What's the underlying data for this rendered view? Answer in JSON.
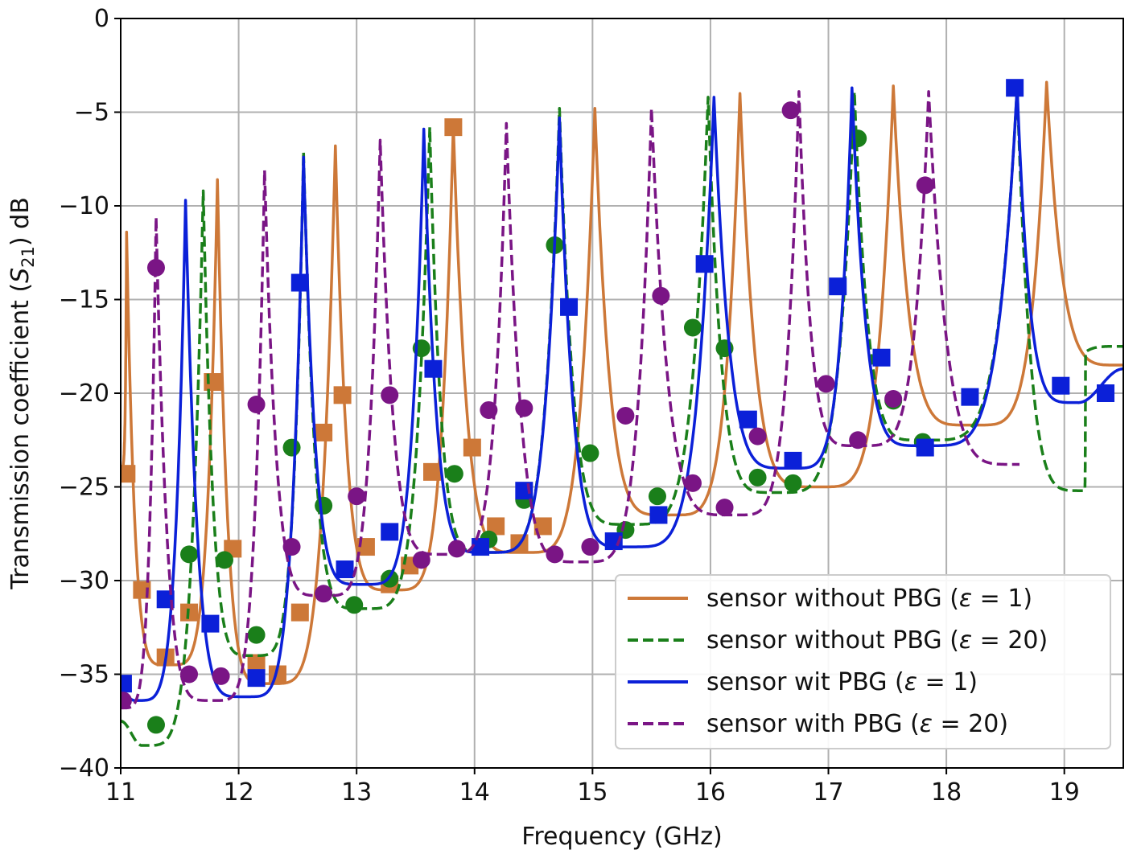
{
  "chart_data": {
    "type": "line",
    "title": "",
    "xlabel": "Frequency (GHz)",
    "ylabel": "Transmission coefficient (S21) dB",
    "ylabel_parts": {
      "pre": "Transmission coefficient (",
      "sym": "S",
      "sub": "21",
      "post": ") dB"
    },
    "xlim": [
      11,
      19.5
    ],
    "ylim": [
      -40,
      0
    ],
    "xticks": [
      11,
      12,
      13,
      14,
      15,
      16,
      17,
      18,
      19
    ],
    "yticks": [
      0,
      -5,
      -10,
      -15,
      -20,
      -25,
      -30,
      -35,
      -40
    ],
    "grid": true,
    "legend_position": "lower-right",
    "series": [
      {
        "name": "sensor without PBG (ε = 1)",
        "legend_parts": {
          "pre": "sensor without PBG (",
          "sym": "ε",
          "post": " = 1)"
        },
        "color": "#cd7838",
        "dash": "solid",
        "marker": "square",
        "peaks": [
          [
            11.05,
            -11.4
          ],
          [
            11.82,
            -8.6
          ],
          [
            12.82,
            -6.8
          ],
          [
            13.82,
            -5.7
          ],
          [
            15.02,
            -4.8
          ],
          [
            16.25,
            -4.0
          ],
          [
            17.55,
            -3.6
          ],
          [
            18.85,
            -3.4
          ]
        ],
        "valleys": [
          [
            11.0,
            -24.0
          ],
          [
            11.4,
            -34.5
          ],
          [
            12.25,
            -35.5
          ],
          [
            13.3,
            -30.5
          ],
          [
            14.4,
            -28.5
          ],
          [
            15.65,
            -26.5
          ],
          [
            16.9,
            -25.0
          ],
          [
            18.22,
            -21.7
          ],
          [
            19.5,
            -18.5
          ]
        ],
        "markers": [
          [
            11.05,
            -24.3
          ],
          [
            11.18,
            -30.5
          ],
          [
            11.38,
            -34.1
          ],
          [
            11.58,
            -31.7
          ],
          [
            11.78,
            -19.4
          ],
          [
            11.95,
            -28.3
          ],
          [
            12.15,
            -34.4
          ],
          [
            12.33,
            -35.0
          ],
          [
            12.52,
            -31.7
          ],
          [
            12.72,
            -22.1
          ],
          [
            12.88,
            -20.1
          ],
          [
            13.08,
            -28.2
          ],
          [
            13.28,
            -30.2
          ],
          [
            13.45,
            -29.2
          ],
          [
            13.64,
            -24.2
          ],
          [
            13.82,
            -5.8
          ],
          [
            13.98,
            -22.9
          ],
          [
            14.18,
            -27.1
          ],
          [
            14.38,
            -28.0
          ],
          [
            14.58,
            -27.1
          ]
        ]
      },
      {
        "name": "sensor without PBG (ε = 20)",
        "legend_parts": {
          "pre": "sensor without PBG (",
          "sym": "ε",
          "post": " = 20)"
        },
        "color": "#1a7f1a",
        "dash": "dashed",
        "marker": "circle",
        "peaks": [
          [
            11.7,
            -9.2
          ],
          [
            12.55,
            -7.1
          ],
          [
            13.62,
            -5.8
          ],
          [
            14.72,
            -4.8
          ],
          [
            15.98,
            -4.2
          ],
          [
            17.22,
            -3.9
          ],
          [
            18.6,
            -3.7
          ],
          [
            19.18,
            -17.8
          ]
        ],
        "valleys": [
          [
            11.0,
            -37.5
          ],
          [
            11.18,
            -38.8
          ],
          [
            12.12,
            -34.0
          ],
          [
            13.05,
            -31.5
          ],
          [
            14.1,
            -28.5
          ],
          [
            15.3,
            -27.0
          ],
          [
            16.55,
            -25.3
          ],
          [
            17.8,
            -22.5
          ],
          [
            19.17,
            -25.2
          ],
          [
            19.5,
            -17.5
          ]
        ],
        "markers": [
          [
            11.3,
            -37.7
          ],
          [
            11.58,
            -28.6
          ],
          [
            11.88,
            -28.9
          ],
          [
            12.15,
            -32.9
          ],
          [
            12.45,
            -22.9
          ],
          [
            12.72,
            -26.0
          ],
          [
            12.98,
            -31.3
          ],
          [
            13.28,
            -29.9
          ],
          [
            13.55,
            -17.6
          ],
          [
            13.83,
            -24.3
          ],
          [
            14.12,
            -27.8
          ],
          [
            14.42,
            -25.7
          ],
          [
            14.68,
            -12.1
          ],
          [
            14.98,
            -23.2
          ],
          [
            15.28,
            -27.3
          ],
          [
            15.55,
            -25.5
          ],
          [
            15.85,
            -16.5
          ],
          [
            16.12,
            -17.6
          ],
          [
            16.4,
            -24.5
          ],
          [
            16.7,
            -24.8
          ],
          [
            17.25,
            -6.4
          ],
          [
            17.55,
            -20.4
          ],
          [
            17.8,
            -22.6
          ]
        ]
      },
      {
        "name": "sensor wit PBG (ε = 1)",
        "legend_parts": {
          "pre": "sensor wit PBG (",
          "sym": "ε",
          "post": " = 1)"
        },
        "color": "#0b20d8",
        "dash": "solid",
        "marker": "square",
        "peaks": [
          [
            11.55,
            -9.7
          ],
          [
            12.55,
            -7.4
          ],
          [
            13.57,
            -5.9
          ],
          [
            14.72,
            -5.3
          ],
          [
            16.03,
            -4.2
          ],
          [
            17.2,
            -3.7
          ],
          [
            18.6,
            -3.6
          ]
        ],
        "valleys": [
          [
            11.0,
            -36.0
          ],
          [
            11.12,
            -36.4
          ],
          [
            12.05,
            -36.2
          ],
          [
            13.05,
            -30.2
          ],
          [
            14.1,
            -28.5
          ],
          [
            15.3,
            -28.2
          ],
          [
            16.68,
            -24.0
          ],
          [
            17.8,
            -22.8
          ],
          [
            19.12,
            -20.5
          ],
          [
            19.5,
            -18.7
          ]
        ],
        "markers": [
          [
            11.02,
            -35.5
          ],
          [
            11.38,
            -31.0
          ],
          [
            11.76,
            -32.3
          ],
          [
            12.15,
            -35.2
          ],
          [
            12.52,
            -14.1
          ],
          [
            12.9,
            -29.4
          ],
          [
            13.28,
            -27.4
          ],
          [
            13.65,
            -18.7
          ],
          [
            14.05,
            -28.2
          ],
          [
            14.42,
            -25.2
          ],
          [
            14.8,
            -15.4
          ],
          [
            15.18,
            -27.9
          ],
          [
            15.56,
            -26.5
          ],
          [
            15.95,
            -13.1
          ],
          [
            16.32,
            -21.4
          ],
          [
            16.7,
            -23.6
          ],
          [
            17.08,
            -14.3
          ],
          [
            17.45,
            -18.1
          ],
          [
            17.82,
            -22.9
          ],
          [
            18.2,
            -20.2
          ],
          [
            18.58,
            -3.7
          ],
          [
            18.97,
            -19.6
          ],
          [
            19.35,
            -20.0
          ]
        ]
      },
      {
        "name": "sensor with PBG (ε = 20)",
        "legend_parts": {
          "pre": "sensor with PBG (",
          "sym": "ε",
          "post": " = 20)"
        },
        "color": "#7a1585",
        "dash": "dashed",
        "marker": "circle",
        "peaks": [
          [
            11.3,
            -10.6
          ],
          [
            12.22,
            -8.1
          ],
          [
            13.2,
            -6.5
          ],
          [
            14.27,
            -5.6
          ],
          [
            15.5,
            -4.8
          ],
          [
            16.75,
            -3.9
          ],
          [
            17.85,
            -3.9
          ]
        ],
        "valleys": [
          [
            11.0,
            -36.8
          ],
          [
            11.78,
            -36.4
          ],
          [
            12.72,
            -30.8
          ],
          [
            13.75,
            -28.6
          ],
          [
            14.9,
            -29.0
          ],
          [
            16.2,
            -26.5
          ],
          [
            17.25,
            -22.8
          ],
          [
            18.62,
            -23.8
          ]
        ],
        "markers": [
          [
            11.02,
            -36.4
          ],
          [
            11.3,
            -13.3
          ],
          [
            11.58,
            -35.0
          ],
          [
            11.85,
            -35.1
          ],
          [
            12.15,
            -20.6
          ],
          [
            12.45,
            -28.2
          ],
          [
            12.72,
            -30.7
          ],
          [
            13.0,
            -25.5
          ],
          [
            13.28,
            -20.1
          ],
          [
            13.55,
            -28.9
          ],
          [
            13.85,
            -28.3
          ],
          [
            14.12,
            -20.9
          ],
          [
            14.42,
            -20.8
          ],
          [
            14.68,
            -28.6
          ],
          [
            14.98,
            -28.2
          ],
          [
            15.28,
            -21.2
          ],
          [
            15.58,
            -14.8
          ],
          [
            15.85,
            -24.8
          ],
          [
            16.12,
            -26.1
          ],
          [
            16.4,
            -22.3
          ],
          [
            16.68,
            -4.9
          ],
          [
            16.98,
            -19.5
          ],
          [
            17.25,
            -22.5
          ],
          [
            17.55,
            -20.3
          ],
          [
            17.82,
            -8.9
          ]
        ]
      }
    ]
  }
}
